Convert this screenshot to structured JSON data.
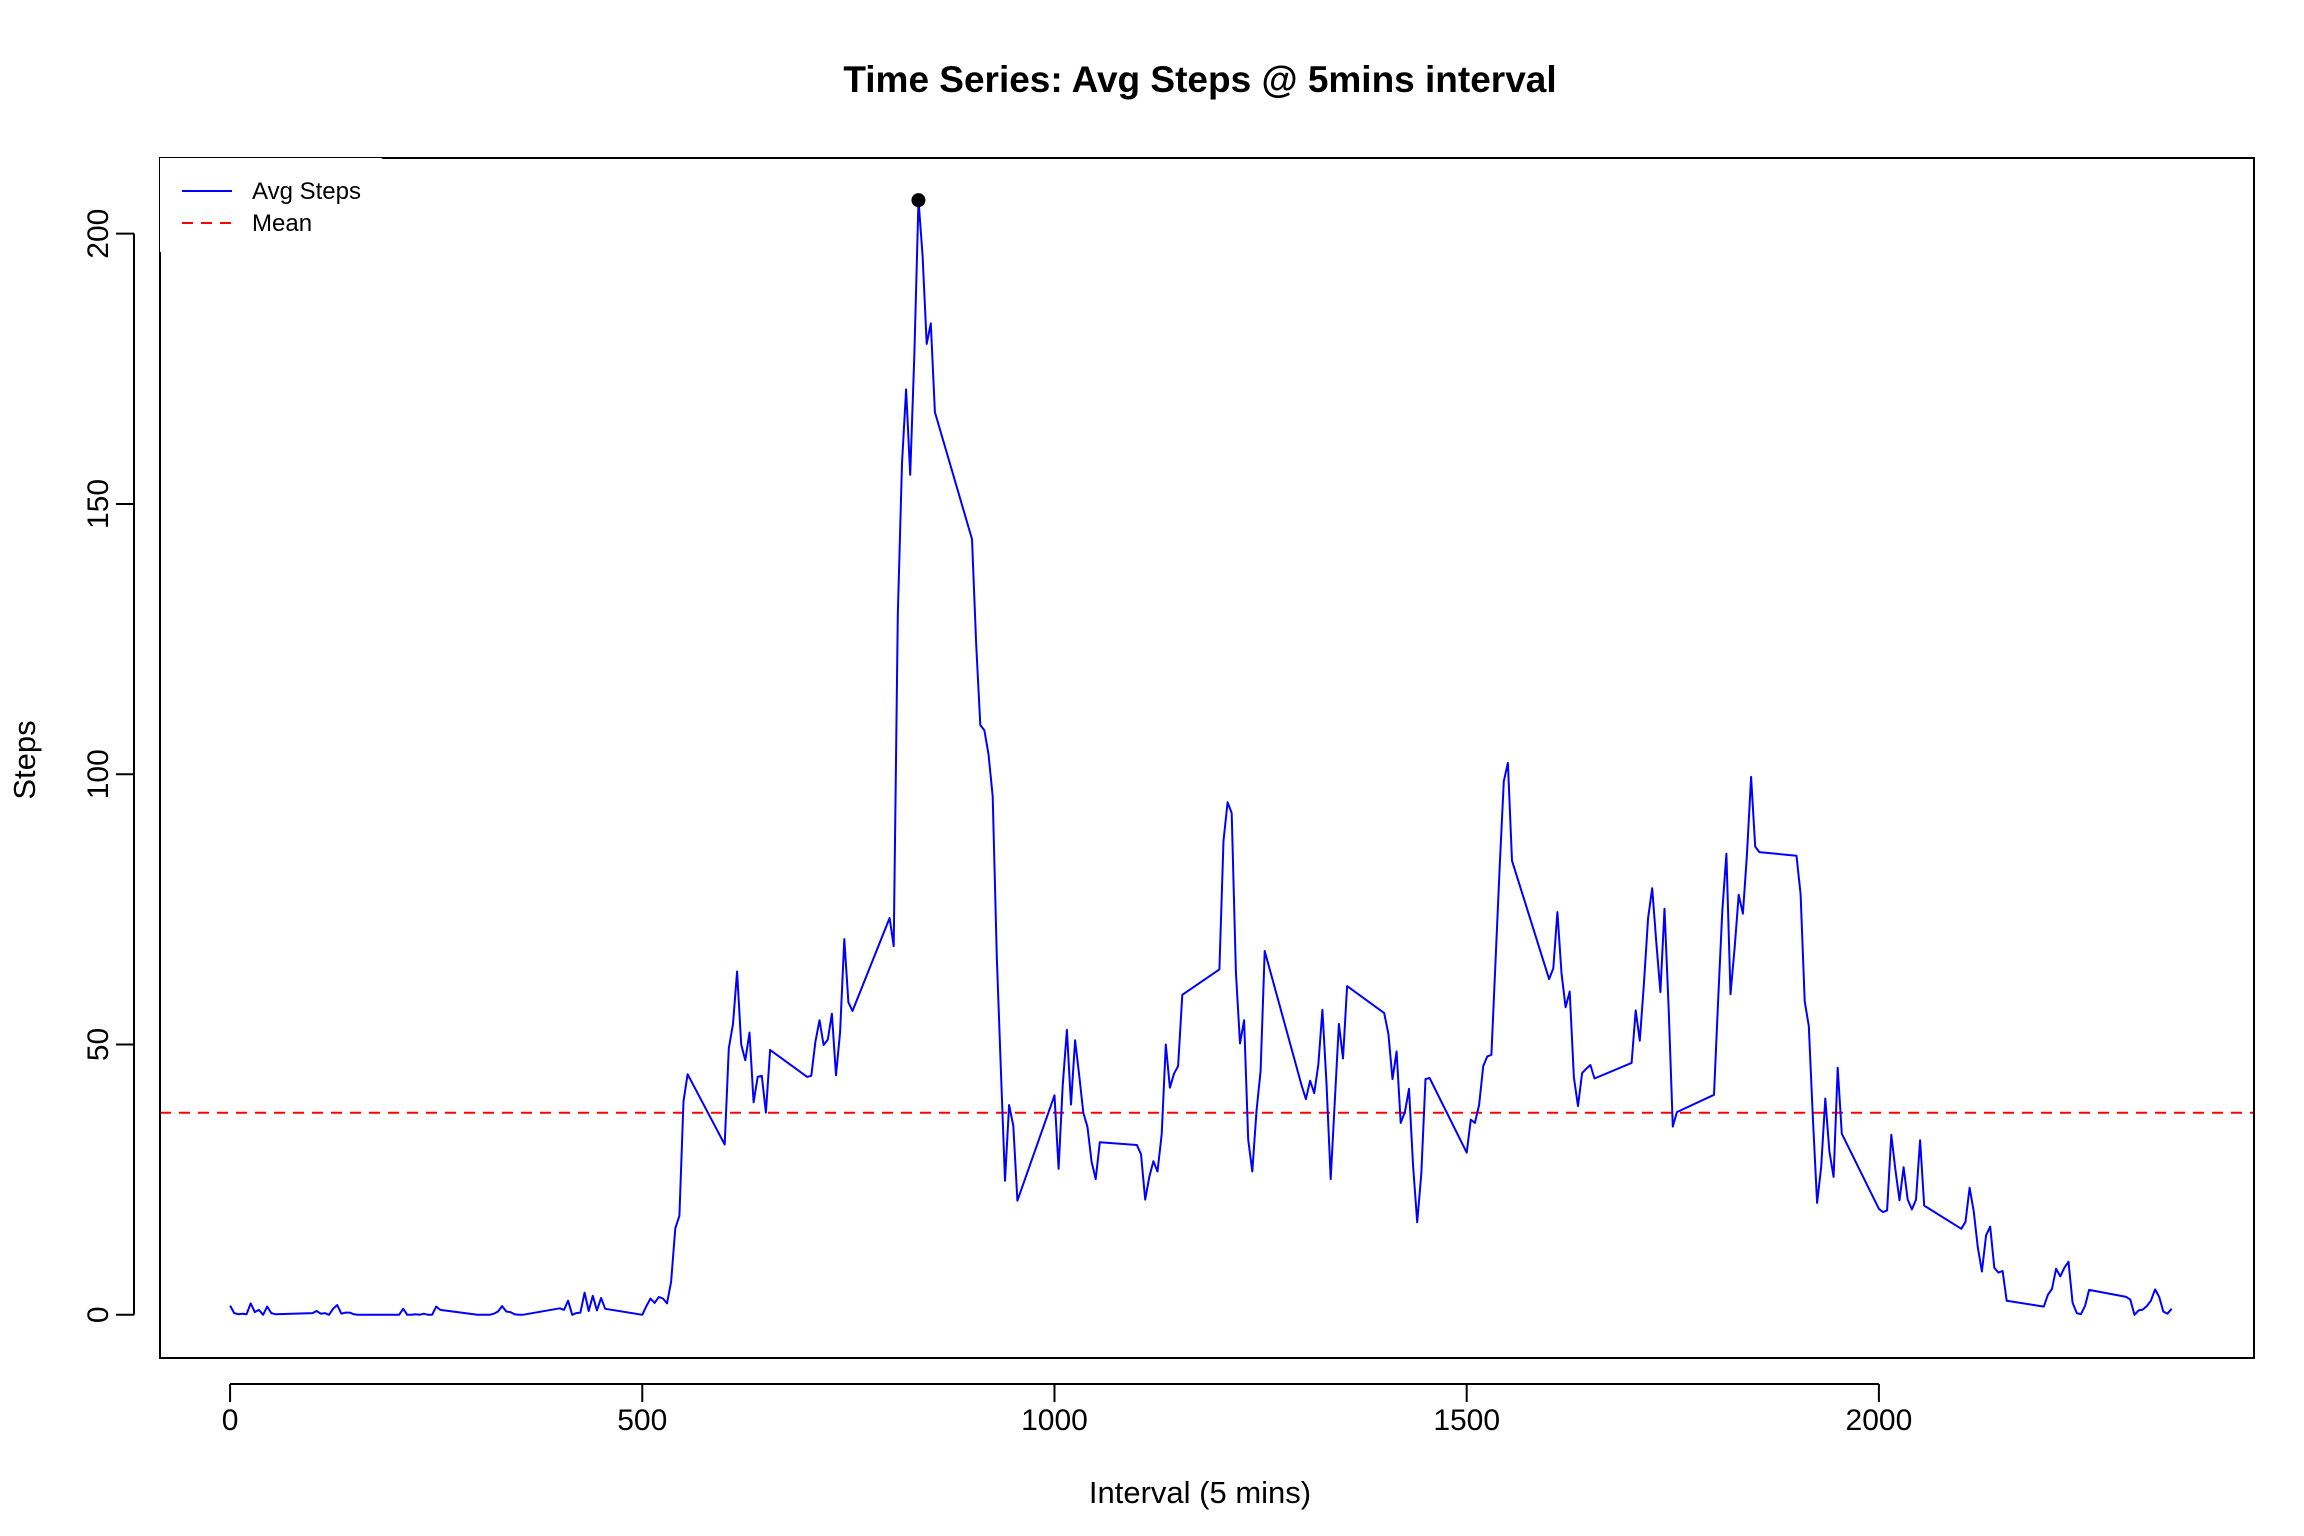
{
  "colors": {
    "series": "#0000ff",
    "mean": "#ff0000",
    "axis": "#000000",
    "background": "#ffffff"
  },
  "chart_data": {
    "type": "line",
    "title": "Time Series: Avg Steps @ 5mins interval",
    "xlabel": "Interval (5 mins)",
    "ylabel": "Steps",
    "xlim": [
      -85,
      2455
    ],
    "ylim": [
      -8,
      214
    ],
    "xticks": [
      0,
      500,
      1000,
      1500,
      2000
    ],
    "yticks": [
      0,
      50,
      100,
      150,
      200
    ],
    "grid": false,
    "legend": {
      "position": "top-left",
      "entries": [
        {
          "label": "Avg Steps",
          "style": "solid",
          "color": "#0000ff"
        },
        {
          "label": "Mean",
          "style": "dashed",
          "color": "#ff0000"
        }
      ]
    },
    "mean_value": 37.38,
    "max_point": {
      "x": 835,
      "y": 206.2
    },
    "series": [
      {
        "name": "Avg Steps",
        "color": "#0000ff",
        "points": [
          [
            0,
            1.7
          ],
          [
            5,
            0.3
          ],
          [
            10,
            0.1
          ],
          [
            15,
            0.2
          ],
          [
            20,
            0.1
          ],
          [
            25,
            2.1
          ],
          [
            30,
            0.5
          ],
          [
            35,
            0.9
          ],
          [
            40,
            0.0
          ],
          [
            45,
            1.5
          ],
          [
            50,
            0.3
          ],
          [
            55,
            0.1
          ],
          [
            100,
            0.3
          ],
          [
            105,
            0.7
          ],
          [
            110,
            0.2
          ],
          [
            115,
            0.3
          ],
          [
            120,
            0.0
          ],
          [
            125,
            1.1
          ],
          [
            130,
            1.8
          ],
          [
            135,
            0.2
          ],
          [
            140,
            0.4
          ],
          [
            145,
            0.4
          ],
          [
            150,
            0.1
          ],
          [
            155,
            0.0
          ],
          [
            200,
            0.0
          ],
          [
            205,
            0.0
          ],
          [
            210,
            1.1
          ],
          [
            215,
            0.0
          ],
          [
            220,
            0.0
          ],
          [
            225,
            0.1
          ],
          [
            230,
            0.0
          ],
          [
            235,
            0.2
          ],
          [
            240,
            0.0
          ],
          [
            245,
            0.0
          ],
          [
            250,
            1.5
          ],
          [
            255,
            0.9
          ],
          [
            300,
            0.0
          ],
          [
            305,
            0.0
          ],
          [
            310,
            0.0
          ],
          [
            315,
            0.0
          ],
          [
            320,
            0.2
          ],
          [
            325,
            0.6
          ],
          [
            330,
            1.6
          ],
          [
            335,
            0.6
          ],
          [
            340,
            0.5
          ],
          [
            345,
            0.1
          ],
          [
            350,
            0.0
          ],
          [
            355,
            0.0
          ],
          [
            400,
            1.2
          ],
          [
            405,
            0.9
          ],
          [
            410,
            2.6
          ],
          [
            415,
            0.0
          ],
          [
            420,
            0.3
          ],
          [
            425,
            0.4
          ],
          [
            430,
            4.1
          ],
          [
            435,
            0.7
          ],
          [
            440,
            3.5
          ],
          [
            445,
            0.8
          ],
          [
            450,
            3.1
          ],
          [
            455,
            1.1
          ],
          [
            500,
            0.0
          ],
          [
            505,
            1.6
          ],
          [
            510,
            3.0
          ],
          [
            515,
            2.2
          ],
          [
            520,
            3.3
          ],
          [
            525,
            3.0
          ],
          [
            530,
            2.1
          ],
          [
            535,
            6.1
          ],
          [
            540,
            16.0
          ],
          [
            545,
            18.3
          ],
          [
            550,
            39.5
          ],
          [
            555,
            44.5
          ],
          [
            600,
            31.5
          ],
          [
            605,
            49.3
          ],
          [
            610,
            53.8
          ],
          [
            615,
            63.5
          ],
          [
            620,
            50.0
          ],
          [
            625,
            47.1
          ],
          [
            630,
            52.2
          ],
          [
            635,
            39.3
          ],
          [
            640,
            44.0
          ],
          [
            645,
            44.2
          ],
          [
            650,
            37.4
          ],
          [
            655,
            49.0
          ],
          [
            700,
            44.0
          ],
          [
            705,
            44.2
          ],
          [
            710,
            50.5
          ],
          [
            715,
            54.5
          ],
          [
            720,
            49.9
          ],
          [
            725,
            50.9
          ],
          [
            730,
            55.7
          ],
          [
            735,
            44.3
          ],
          [
            740,
            52.3
          ],
          [
            745,
            69.5
          ],
          [
            750,
            57.8
          ],
          [
            755,
            56.2
          ],
          [
            800,
            73.4
          ],
          [
            805,
            68.2
          ],
          [
            810,
            129.4
          ],
          [
            815,
            157.5
          ],
          [
            820,
            171.2
          ],
          [
            825,
            155.4
          ],
          [
            830,
            177.3
          ],
          [
            835,
            206.2
          ],
          [
            840,
            195.9
          ],
          [
            845,
            179.6
          ],
          [
            850,
            183.4
          ],
          [
            855,
            167.0
          ],
          [
            900,
            143.5
          ],
          [
            905,
            124.0
          ],
          [
            910,
            109.1
          ],
          [
            915,
            108.1
          ],
          [
            920,
            103.7
          ],
          [
            925,
            95.9
          ],
          [
            930,
            66.2
          ],
          [
            935,
            45.2
          ],
          [
            940,
            24.8
          ],
          [
            945,
            38.8
          ],
          [
            950,
            34.98
          ],
          [
            955,
            21.1
          ],
          [
            1000,
            40.6
          ],
          [
            1005,
            27.0
          ],
          [
            1010,
            42.4
          ],
          [
            1015,
            52.7
          ],
          [
            1020,
            38.9
          ],
          [
            1025,
            50.8
          ],
          [
            1030,
            44.3
          ],
          [
            1035,
            37.4
          ],
          [
            1040,
            34.7
          ],
          [
            1045,
            28.3
          ],
          [
            1050,
            25.1
          ],
          [
            1055,
            31.9
          ],
          [
            1100,
            31.4
          ],
          [
            1105,
            29.7
          ],
          [
            1110,
            21.3
          ],
          [
            1115,
            25.5
          ],
          [
            1120,
            28.4
          ],
          [
            1125,
            26.5
          ],
          [
            1130,
            33.4
          ],
          [
            1135,
            50.0
          ],
          [
            1140,
            42.0
          ],
          [
            1145,
            44.6
          ],
          [
            1150,
            46.0
          ],
          [
            1155,
            59.2
          ],
          [
            1200,
            63.9
          ],
          [
            1205,
            87.7
          ],
          [
            1210,
            94.8
          ],
          [
            1215,
            92.8
          ],
          [
            1220,
            63.4
          ],
          [
            1225,
            50.2
          ],
          [
            1230,
            54.5
          ],
          [
            1235,
            32.4
          ],
          [
            1240,
            26.5
          ],
          [
            1245,
            37.7
          ],
          [
            1250,
            45.1
          ],
          [
            1255,
            67.3
          ],
          [
            1300,
            42.3
          ],
          [
            1305,
            39.9
          ],
          [
            1310,
            43.3
          ],
          [
            1315,
            40.98
          ],
          [
            1320,
            46.2
          ],
          [
            1325,
            56.4
          ],
          [
            1330,
            42.8
          ],
          [
            1335,
            25.1
          ],
          [
            1340,
            39.5
          ],
          [
            1345,
            53.8
          ],
          [
            1350,
            47.4
          ],
          [
            1355,
            60.8
          ],
          [
            1400,
            55.8
          ],
          [
            1405,
            51.96
          ],
          [
            1410,
            43.6
          ],
          [
            1415,
            48.7
          ],
          [
            1420,
            35.5
          ],
          [
            1425,
            37.5
          ],
          [
            1430,
            41.8
          ],
          [
            1435,
            27.5
          ],
          [
            1440,
            17.1
          ],
          [
            1445,
            26.1
          ],
          [
            1450,
            43.6
          ],
          [
            1455,
            43.8
          ],
          [
            1500,
            30.0
          ],
          [
            1505,
            36.1
          ],
          [
            1510,
            35.5
          ],
          [
            1515,
            38.8
          ],
          [
            1520,
            45.96
          ],
          [
            1525,
            47.8
          ],
          [
            1530,
            48.1
          ],
          [
            1535,
            65.3
          ],
          [
            1540,
            82.9
          ],
          [
            1545,
            98.7
          ],
          [
            1550,
            102.1
          ],
          [
            1555,
            84.0
          ],
          [
            1600,
            62.1
          ],
          [
            1605,
            64.1
          ],
          [
            1610,
            74.5
          ],
          [
            1615,
            63.2
          ],
          [
            1620,
            56.9
          ],
          [
            1625,
            59.8
          ],
          [
            1630,
            43.9
          ],
          [
            1635,
            38.6
          ],
          [
            1640,
            44.7
          ],
          [
            1645,
            45.5
          ],
          [
            1650,
            46.2
          ],
          [
            1655,
            43.7
          ],
          [
            1700,
            46.6
          ],
          [
            1705,
            56.3
          ],
          [
            1710,
            50.7
          ],
          [
            1715,
            61.2
          ],
          [
            1720,
            73.4
          ],
          [
            1725,
            78.9
          ],
          [
            1730,
            68.9
          ],
          [
            1735,
            59.7
          ],
          [
            1740,
            75.1
          ],
          [
            1745,
            56.5
          ],
          [
            1750,
            34.8
          ],
          [
            1755,
            37.5
          ],
          [
            1800,
            40.7
          ],
          [
            1805,
            58.0
          ],
          [
            1810,
            74.7
          ],
          [
            1815,
            85.3
          ],
          [
            1820,
            59.3
          ],
          [
            1825,
            67.8
          ],
          [
            1830,
            77.7
          ],
          [
            1835,
            74.2
          ],
          [
            1840,
            85.3
          ],
          [
            1845,
            99.5
          ],
          [
            1850,
            86.6
          ],
          [
            1855,
            85.6
          ],
          [
            1900,
            84.9
          ],
          [
            1905,
            77.8
          ],
          [
            1910,
            58.0
          ],
          [
            1915,
            53.4
          ],
          [
            1920,
            36.3
          ],
          [
            1925,
            20.7
          ],
          [
            1930,
            27.4
          ],
          [
            1935,
            40.0
          ],
          [
            1940,
            30.2
          ],
          [
            1945,
            25.5
          ],
          [
            1950,
            45.7
          ],
          [
            1955,
            33.5
          ],
          [
            2000,
            19.6
          ],
          [
            2005,
            19.0
          ],
          [
            2010,
            19.3
          ],
          [
            2015,
            33.3
          ],
          [
            2020,
            26.8
          ],
          [
            2025,
            21.2
          ],
          [
            2030,
            27.3
          ],
          [
            2035,
            21.3
          ],
          [
            2040,
            19.5
          ],
          [
            2045,
            21.3
          ],
          [
            2050,
            32.3
          ],
          [
            2055,
            20.2
          ],
          [
            2100,
            15.9
          ],
          [
            2105,
            17.2
          ],
          [
            2110,
            23.5
          ],
          [
            2115,
            19.2
          ],
          [
            2120,
            12.5
          ],
          [
            2125,
            8.0
          ],
          [
            2130,
            14.7
          ],
          [
            2135,
            16.3
          ],
          [
            2140,
            8.7
          ],
          [
            2145,
            7.8
          ],
          [
            2150,
            8.1
          ],
          [
            2155,
            2.6
          ],
          [
            2200,
            1.5
          ],
          [
            2205,
            3.7
          ],
          [
            2210,
            4.8
          ],
          [
            2215,
            8.5
          ],
          [
            2220,
            7.1
          ],
          [
            2225,
            8.7
          ],
          [
            2230,
            9.8
          ],
          [
            2235,
            2.2
          ],
          [
            2240,
            0.3
          ],
          [
            2245,
            0.1
          ],
          [
            2250,
            1.6
          ],
          [
            2255,
            4.6
          ],
          [
            2300,
            3.3
          ],
          [
            2305,
            2.8
          ],
          [
            2310,
            0.0
          ],
          [
            2315,
            0.8
          ],
          [
            2320,
            0.96
          ],
          [
            2325,
            1.6
          ],
          [
            2330,
            2.6
          ],
          [
            2335,
            4.7
          ],
          [
            2340,
            3.3
          ],
          [
            2345,
            0.6
          ],
          [
            2350,
            0.2
          ],
          [
            2355,
            1.1
          ]
        ]
      }
    ]
  }
}
